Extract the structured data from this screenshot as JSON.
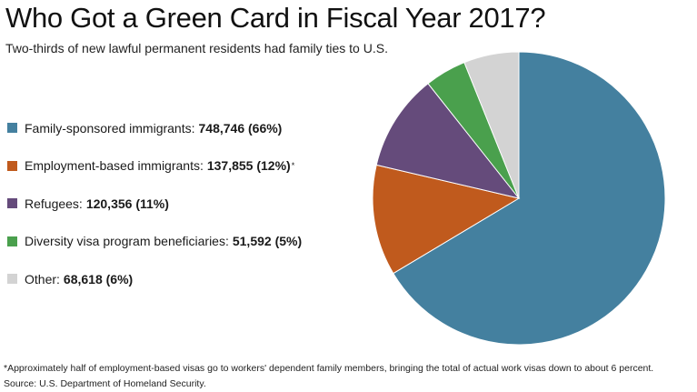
{
  "title": "Who Got a Green Card in Fiscal Year 2017?",
  "subtitle": "Two-thirds of new lawful permanent residents had family ties to U.S.",
  "chart_data": {
    "type": "pie",
    "title": "Who Got a Green Card in Fiscal Year 2017?",
    "slices": [
      {
        "label": "Family-sponsored immigrants:",
        "value": 748746,
        "display": "748,746 (66%)",
        "percent": 66,
        "color": "#44809f",
        "note": ""
      },
      {
        "label": "Employment-based immigrants:",
        "value": 137855,
        "display": "137,855 (12%)",
        "percent": 12,
        "color": "#c05a1d",
        "note": "*"
      },
      {
        "label": "Refugees:",
        "value": 120356,
        "display": "120,356 (11%)",
        "percent": 11,
        "color": "#654b7b",
        "note": ""
      },
      {
        "label": "Diversity visa program beneficiaries:",
        "value": 51592,
        "display": "51,592 (5%)",
        "percent": 5,
        "color": "#4aa04d",
        "note": ""
      },
      {
        "label": "Other:",
        "value": 68618,
        "display": "68,618 (6%)",
        "percent": 6,
        "color": "#d3d3d3",
        "note": ""
      }
    ]
  },
  "footnote": "*Approximately half of employment-based visas go to workers' dependent family members, bringing the total of actual work visas down to about 6 percent.",
  "source": "Source: U.S. Department of Homeland Security."
}
